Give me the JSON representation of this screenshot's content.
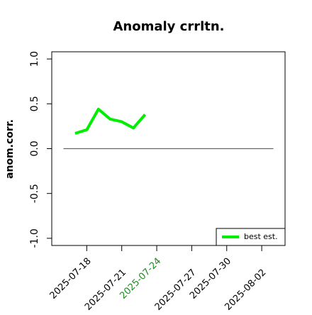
{
  "chart_data": {
    "type": "line",
    "title": "Anomaly crrltn.",
    "y_label": "anom.corr.",
    "x": [
      "2025-07-17",
      "2025-07-18",
      "2025-07-19",
      "2025-07-20",
      "2025-07-21",
      "2025-07-22",
      "2025-07-23"
    ],
    "series": [
      {
        "name": "best est.",
        "color": "#00ee00",
        "values": [
          0.17,
          0.21,
          0.44,
          0.33,
          0.3,
          0.23,
          0.38
        ]
      }
    ],
    "reference_line": {
      "y": 0,
      "x": [
        "2025-07-16",
        "2025-08-03"
      ],
      "color": "#666666"
    },
    "xlim": [
      "2025-07-15",
      "2025-08-04"
    ],
    "xticks": [
      "2025-07-18",
      "2025-07-21",
      "2025-07-24",
      "2025-07-27",
      "2025-07-30",
      "2025-08-02"
    ],
    "highlight_tick": "2025-07-24",
    "highlight_color": "#228b22",
    "ylim": [
      -1.08,
      1.08
    ],
    "yticks": [
      {
        "value": -1,
        "label": "-1.0"
      },
      {
        "value": -0.5,
        "label": "-0.5"
      },
      {
        "value": 0,
        "label": "0.0"
      },
      {
        "value": 0.5,
        "label": "0.5"
      },
      {
        "value": 1,
        "label": "1.0"
      }
    ],
    "legend": "bottom-right"
  }
}
